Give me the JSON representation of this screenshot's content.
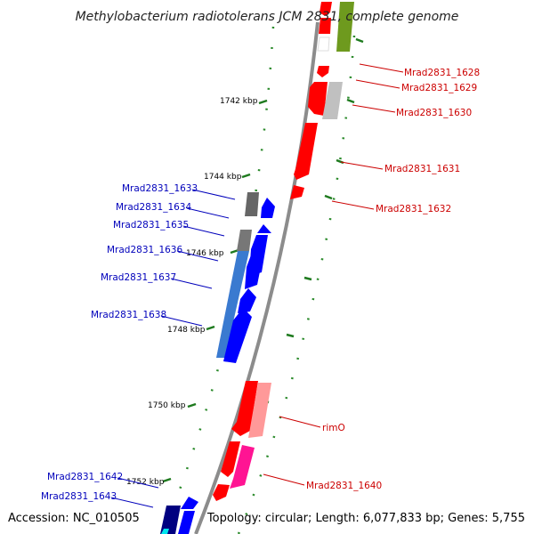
{
  "title": "Methylobacterium radiotolerans JCM 2831, complete genome",
  "footer": {
    "accession": "Accession: NC_010505",
    "summary": "Topology: circular; Length: 6,077,833 bp; Genes: 5,755"
  },
  "ruler": [
    {
      "label": "1742 kbp"
    },
    {
      "label": "1744 kbp"
    },
    {
      "label": "1746 kbp"
    },
    {
      "label": "1748 kbp"
    },
    {
      "label": "1750 kbp"
    },
    {
      "label": "1752 kbp"
    }
  ],
  "gene_labels": {
    "forward": [
      "Mrad2831_1628",
      "Mrad2831_1629",
      "Mrad2831_1630",
      "Mrad2831_1631",
      "Mrad2831_1632",
      "rimO",
      "Mrad2831_1640"
    ],
    "reverse": [
      "Mrad2831_1633",
      "Mrad2831_1634",
      "Mrad2831_1635",
      "Mrad2831_1636",
      "Mrad2831_1637",
      "Mrad2831_1638",
      "Mrad2831_1642",
      "Mrad2831_1643"
    ]
  },
  "colors": {
    "forward_label": "#cc0000",
    "reverse_label": "#0000bb",
    "backbone": "#8c8c8c",
    "ruler_tick": "#1e7a1e"
  }
}
